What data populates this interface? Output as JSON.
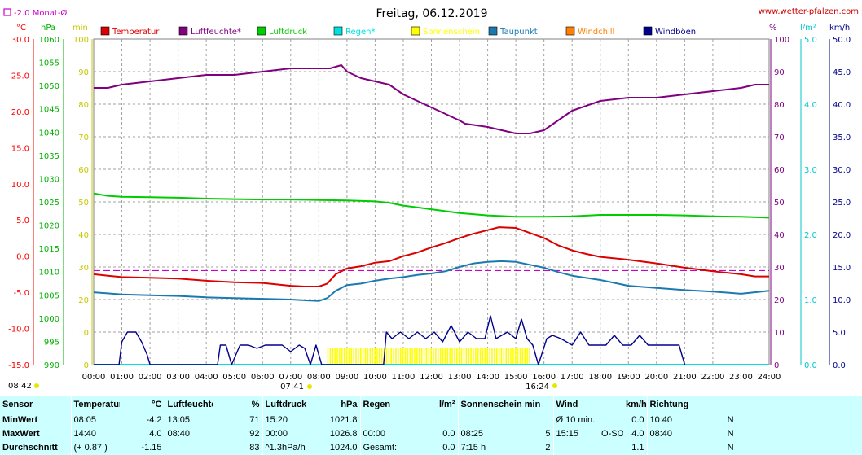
{
  "header": {
    "title": "Freitag, 06.12.2019",
    "website": "www.wetter-pfalzen.com",
    "monthly_avg_label": "-2.0 Monat-Ø"
  },
  "axis_units": {
    "temperature": "°C",
    "pressure": "hPa",
    "sunshine": "min",
    "humidity": "%",
    "rain": "l/m²",
    "wind": "km/h"
  },
  "colors": {
    "temperature": "#dd0000",
    "humidity": "#800080",
    "pressure": "#00cc00",
    "rain": "#00e0e0",
    "sunshine": "#ffff00",
    "dewpoint": "#1a7ab0",
    "windchill": "#ff8000",
    "gusts": "#00008b",
    "temp_axis": "#ff0000",
    "pressure_axis": "#00b000",
    "sun_axis": "#c8c800",
    "hum_axis": "#800080",
    "rain_axis": "#00c8c8",
    "wind_axis": "#00008b",
    "monthly_avg": "#cc00cc"
  },
  "legend": [
    {
      "label": "Temperatur",
      "color": "#dd0000"
    },
    {
      "label": "Luftfeuchte*",
      "color": "#800080"
    },
    {
      "label": "Luftdruck",
      "color": "#00cc00"
    },
    {
      "label": "Regen*",
      "color": "#00e0e0"
    },
    {
      "label": "Sonnenschein",
      "color": "#ffff00"
    },
    {
      "label": "Taupunkt",
      "color": "#1a7ab0"
    },
    {
      "label": "Windchill",
      "color": "#ff8000"
    },
    {
      "label": "Windböen",
      "color": "#00008b"
    }
  ],
  "sun": {
    "daylength": "08:42",
    "sunrise": "07:41",
    "sunset": "16:24"
  },
  "chart_data": {
    "type": "line",
    "x_ticks": [
      "00:00",
      "01:00",
      "02:00",
      "03:00",
      "04:00",
      "05:00",
      "06:00",
      "07:00",
      "08:00",
      "09:00",
      "10:00",
      "11:00",
      "12:00",
      "13:00",
      "14:00",
      "15:00",
      "16:00",
      "17:00",
      "18:00",
      "19:00",
      "20:00",
      "21:00",
      "22:00",
      "23:00",
      "24:00"
    ],
    "axes": {
      "temperature": {
        "min": -15,
        "max": 30,
        "ticks": [
          "30.0",
          "25.0",
          "20.0",
          "15.0",
          "10.0",
          "5.0",
          "0.0",
          "-5.0",
          "-10.0",
          "-15.0"
        ]
      },
      "pressure": {
        "min": 990,
        "max": 1060,
        "ticks": [
          "1060",
          "1055",
          "1050",
          "1045",
          "1040",
          "1035",
          "1030",
          "1025",
          "1020",
          "1015",
          "1010",
          "1005",
          "1000",
          "995",
          "990"
        ]
      },
      "sunshine": {
        "min": 0,
        "max": 100,
        "ticks": [
          "100",
          "90",
          "80",
          "70",
          "60",
          "50",
          "40",
          "30",
          "20",
          "10",
          "0"
        ]
      },
      "humidity": {
        "min": 0,
        "max": 100,
        "ticks": [
          "100",
          "90",
          "80",
          "70",
          "60",
          "50",
          "40",
          "30",
          "20",
          "10",
          "0"
        ]
      },
      "rain": {
        "min": 0,
        "max": 5,
        "ticks": [
          "5.0",
          "4.0",
          "3.0",
          "2.0",
          "1.0",
          "0.0"
        ]
      },
      "wind": {
        "min": 0,
        "max": 50,
        "ticks": [
          "50.0",
          "45.0",
          "40.0",
          "35.0",
          "30.0",
          "25.0",
          "20.0",
          "15.0",
          "10.0",
          "5.0",
          "0.0"
        ]
      }
    },
    "monthly_avg_temp": -2.0,
    "series": [
      {
        "name": "Temperatur",
        "unit": "°C",
        "x": [
          0,
          0.5,
          1,
          2,
          3,
          4,
          5,
          6,
          7,
          7.5,
          8,
          8.3,
          8.6,
          9,
          9.5,
          10,
          10.5,
          11,
          11.5,
          12,
          12.5,
          13,
          13.5,
          14,
          14.4,
          15,
          15.5,
          16,
          16.5,
          17,
          17.5,
          18,
          19,
          20,
          21,
          22,
          23,
          23.5,
          24
        ],
        "values": [
          -2.5,
          -2.7,
          -2.9,
          -3.0,
          -3.1,
          -3.4,
          -3.6,
          -3.7,
          -4.1,
          -4.2,
          -4.2,
          -3.8,
          -2.5,
          -1.7,
          -1.4,
          -0.9,
          -0.7,
          0.0,
          0.5,
          1.2,
          1.8,
          2.5,
          3.1,
          3.6,
          4.0,
          3.9,
          3.2,
          2.5,
          1.5,
          0.8,
          0.3,
          -0.1,
          -0.5,
          -1.0,
          -1.6,
          -2.1,
          -2.5,
          -2.8,
          -2.8
        ]
      },
      {
        "name": "Luftfeuchte*",
        "unit": "%",
        "x": [
          0,
          0.5,
          1,
          2,
          3,
          4,
          5,
          6,
          7,
          8,
          8.4,
          8.8,
          9,
          9.5,
          10,
          10.5,
          11,
          11.5,
          12,
          12.5,
          13,
          13.2,
          14,
          14.5,
          15,
          15.5,
          16,
          16.5,
          17,
          18,
          19,
          20,
          21,
          22,
          23,
          23.5,
          24
        ],
        "values": [
          85,
          85,
          86,
          87,
          88,
          89,
          89,
          90,
          91,
          91,
          91,
          92,
          90,
          88,
          87,
          86,
          83,
          81,
          79,
          77,
          75,
          74,
          73,
          72,
          71,
          71,
          72,
          75,
          78,
          81,
          82,
          82,
          83,
          84,
          85,
          86,
          86
        ]
      },
      {
        "name": "Luftdruck",
        "unit": "hPa",
        "x": [
          0,
          0.5,
          1,
          2,
          3,
          4,
          5,
          6,
          7,
          8,
          9,
          10,
          10.5,
          11,
          12,
          13,
          14,
          15,
          16,
          17,
          18,
          19,
          20,
          21,
          22,
          23,
          24
        ],
        "values": [
          1026.8,
          1026.3,
          1026.1,
          1026.0,
          1025.9,
          1025.7,
          1025.6,
          1025.5,
          1025.5,
          1025.4,
          1025.3,
          1025.1,
          1024.8,
          1024.2,
          1023.4,
          1022.6,
          1022.1,
          1021.8,
          1021.8,
          1021.9,
          1022.2,
          1022.2,
          1022.2,
          1022.1,
          1021.9,
          1021.8,
          1021.6
        ]
      },
      {
        "name": "Taupunkt",
        "unit": "°C",
        "x": [
          0,
          1,
          2,
          3,
          4,
          5,
          6,
          7,
          8,
          8.3,
          8.6,
          9,
          9.5,
          10,
          10.5,
          11,
          11.5,
          12,
          12.5,
          13,
          13.5,
          14,
          14.5,
          15,
          15.5,
          16,
          16.5,
          17,
          18,
          19,
          20,
          21,
          22,
          23,
          24
        ],
        "values": [
          -5.0,
          -5.3,
          -5.4,
          -5.5,
          -5.7,
          -5.8,
          -5.9,
          -6.0,
          -6.2,
          -5.8,
          -4.8,
          -4.0,
          -3.8,
          -3.4,
          -3.1,
          -2.9,
          -2.6,
          -2.4,
          -2.1,
          -1.5,
          -1.0,
          -0.8,
          -0.7,
          -0.8,
          -1.2,
          -1.6,
          -2.2,
          -2.7,
          -3.3,
          -4.1,
          -4.4,
          -4.7,
          -4.9,
          -5.2,
          -4.8
        ]
      },
      {
        "name": "Windböen",
        "unit": "km/h",
        "x": [
          0,
          0.9,
          1.0,
          1.2,
          1.5,
          1.7,
          1.9,
          2.0,
          4.4,
          4.5,
          4.7,
          4.9,
          5.2,
          5.5,
          5.8,
          6.1,
          6.4,
          6.7,
          7.0,
          7.3,
          7.5,
          7.7,
          7.9,
          8.1,
          8.2,
          10.3,
          10.4,
          10.6,
          10.9,
          11.2,
          11.5,
          11.8,
          12.1,
          12.4,
          12.7,
          13.0,
          13.3,
          13.6,
          13.9,
          14.1,
          14.3,
          14.7,
          15.0,
          15.2,
          15.4,
          15.6,
          15.8,
          16.1,
          16.3,
          16.6,
          17.0,
          17.3,
          17.6,
          17.9,
          18.2,
          18.5,
          18.8,
          19.1,
          19.4,
          19.7,
          20.0,
          20.3,
          20.6,
          20.8,
          21.0
        ],
        "values": [
          0,
          0,
          3.5,
          5.0,
          5.0,
          3.5,
          1.5,
          0,
          0,
          3.0,
          3.0,
          0,
          3.0,
          3.0,
          2.5,
          3.0,
          3.0,
          3.0,
          2.0,
          3.0,
          2.5,
          0,
          3.0,
          0,
          0,
          0,
          5.0,
          4.0,
          5.0,
          4.0,
          5.0,
          4.0,
          5.0,
          3.5,
          6.0,
          3.5,
          5.0,
          4.0,
          4.0,
          7.5,
          4.0,
          5.0,
          4.0,
          7.0,
          4.0,
          3.0,
          0,
          4.0,
          4.5,
          4.0,
          3.0,
          5.0,
          3.0,
          3.0,
          3.0,
          4.5,
          3.0,
          3.0,
          4.5,
          3.0,
          3.0,
          3.0,
          3.0,
          3.0,
          0
        ]
      },
      {
        "name": "Regen*",
        "unit": "l/m²",
        "x": [
          0,
          24
        ],
        "values": [
          0.0,
          0.0
        ]
      }
    ],
    "sunshine_minutes": {
      "unit": "min",
      "start": 8.3,
      "end": 15.5,
      "value": 5
    }
  },
  "stats": {
    "headers": {
      "sensor": "Sensor",
      "temp": "Temperatur",
      "temp_unit": "°C",
      "hum": "Luftfeuchte",
      "hum_unit": "%",
      "press": "Luftdruck",
      "press_unit": "hPa",
      "rain": "Regen",
      "rain_unit": "l/m²",
      "sun": "Sonnenschein min",
      "wind": "Wind",
      "wind_unit": "km/h",
      "dir": "Richtung"
    },
    "rows": [
      {
        "label": "MinWert",
        "temp_time": "08:05",
        "temp_val": "-4.2",
        "hum_time": "13:05",
        "hum_val": "71",
        "press_time": "15:20",
        "press_val": "1021.8",
        "rain_time": "",
        "rain_val": "",
        "sun_time": "",
        "sun_val": "",
        "wind_time": "Ø 10 min.",
        "wind_dir": "",
        "wind_val": "0.0",
        "dir_time": "10:40",
        "dir_val": "N"
      },
      {
        "label": "MaxWert",
        "temp_time": "14:40",
        "temp_val": "4.0",
        "hum_time": "08:40",
        "hum_val": "92",
        "press_time": "00:00",
        "press_val": "1026.8",
        "rain_time": "00:00",
        "rain_val": "0.0",
        "sun_time": "08:25",
        "sun_val": "5",
        "wind_time": "15:15",
        "wind_dir": "O-SO",
        "wind_val": "4.0",
        "dir_time": "08:40",
        "dir_val": "N"
      },
      {
        "label": "Durchschnitt",
        "temp_time": "(+ 0.87 )",
        "temp_val": "-1.15",
        "hum_time": "",
        "hum_val": "83",
        "press_time": "^1.3hPa/h",
        "press_val": "1024.0",
        "rain_time": "Gesamt:",
        "rain_val": "0.0",
        "sun_time": "7:15 h",
        "sun_val": "2",
        "wind_time": "",
        "wind_dir": "",
        "wind_val": "1.1",
        "dir_time": "",
        "dir_val": "N"
      }
    ]
  }
}
